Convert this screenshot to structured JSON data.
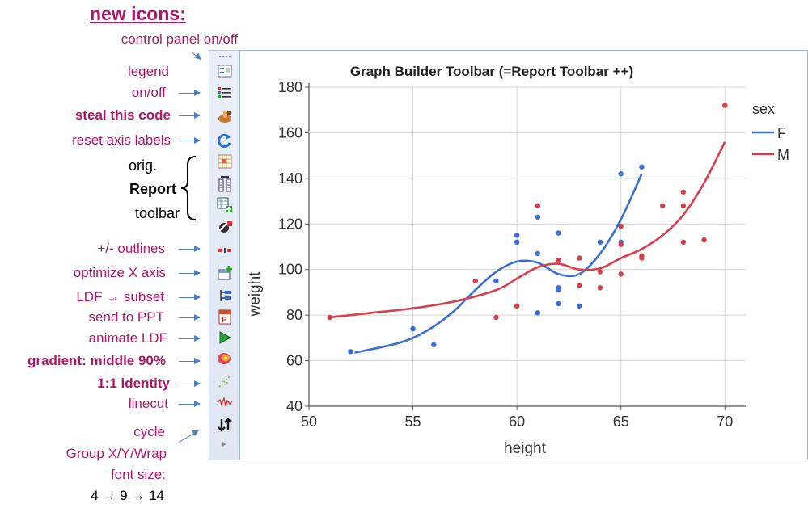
{
  "heading": "new icons:",
  "annotations": {
    "control_panel": "control panel on/off",
    "legend_1": "legend",
    "legend_2": "on/off",
    "steal_code": "steal this code",
    "reset_axis": "reset axis labels",
    "orig": "orig.",
    "report": "Report",
    "toolbar": "toolbar",
    "outlines": "+/-  outlines",
    "optimize_x": "optimize X axis",
    "ldf_subset": "LDF → subset",
    "send_ppt": "send to PPT",
    "animate_ldf": "animate LDF",
    "gradient": "gradient: middle 90%",
    "identity": "1:1 identity",
    "linecut": "linecut",
    "cycle": "cycle",
    "group_xy": "Group X/Y/Wrap",
    "font_size": "font size:",
    "sizes": "4 → 9 → 14"
  },
  "toolbar_icons": [
    "more-icon",
    "control-panel-icon",
    "legend-icon",
    "steal-code-icon",
    "reset-axis-icon",
    "report-grid-icon",
    "columns-icon",
    "add-table-icon",
    "cursor-icon",
    "outlines-icon",
    "optimize-axis-icon",
    "subset-icon",
    "ppt-icon",
    "play-icon",
    "gradient-icon",
    "identity-icon",
    "linecut-icon",
    "cycle-icon",
    "expand-icon"
  ],
  "chart_data": {
    "type": "scatter",
    "title": "Graph Builder Toolbar (=Report Toolbar ++)",
    "xlabel": "height",
    "ylabel": "weight",
    "xlim": [
      50,
      71
    ],
    "ylim": [
      40,
      180
    ],
    "x_ticks": [
      50,
      55,
      60,
      65,
      70
    ],
    "y_ticks": [
      40,
      60,
      80,
      100,
      120,
      140,
      160,
      180
    ],
    "grid": true,
    "legend": {
      "title": "sex",
      "placement": "right"
    },
    "series": [
      {
        "name": "F",
        "color": "#3b6fd4",
        "points": [
          [
            52,
            64
          ],
          [
            55,
            74
          ],
          [
            56,
            67
          ],
          [
            59,
            95
          ],
          [
            60,
            112
          ],
          [
            60,
            115
          ],
          [
            61,
            81
          ],
          [
            61,
            107
          ],
          [
            61,
            123
          ],
          [
            62,
            85
          ],
          [
            62,
            91
          ],
          [
            62,
            92
          ],
          [
            62,
            116
          ],
          [
            63,
            84
          ],
          [
            64,
            112
          ],
          [
            65,
            112
          ],
          [
            65,
            142
          ],
          [
            66,
            145
          ]
        ],
        "smoother": [
          [
            52.2,
            63.5
          ],
          [
            54,
            67
          ],
          [
            55,
            70
          ],
          [
            56,
            75
          ],
          [
            57,
            82
          ],
          [
            58,
            91
          ],
          [
            59,
            99
          ],
          [
            60,
            103.5
          ],
          [
            61,
            103
          ],
          [
            62,
            98
          ],
          [
            63,
            98
          ],
          [
            64,
            107
          ],
          [
            65,
            122
          ],
          [
            66,
            142
          ]
        ]
      },
      {
        "name": "M",
        "color": "#d43f4a",
        "points": [
          [
            51,
            79
          ],
          [
            58,
            95
          ],
          [
            59,
            79
          ],
          [
            60,
            84
          ],
          [
            61,
            128
          ],
          [
            62,
            104
          ],
          [
            62,
            104
          ],
          [
            63,
            93
          ],
          [
            63,
            105
          ],
          [
            64,
            92
          ],
          [
            64,
            99
          ],
          [
            65,
            98
          ],
          [
            65,
            111
          ],
          [
            65,
            119
          ],
          [
            66,
            105
          ],
          [
            66,
            106
          ],
          [
            67,
            128
          ],
          [
            68,
            112
          ],
          [
            68,
            128
          ],
          [
            68,
            134
          ],
          [
            69,
            113
          ],
          [
            70,
            172
          ]
        ],
        "smoother": [
          [
            51,
            79
          ],
          [
            53,
            81
          ],
          [
            55,
            83
          ],
          [
            57,
            86
          ],
          [
            59,
            91
          ],
          [
            60,
            96
          ],
          [
            61,
            101
          ],
          [
            62,
            102.5
          ],
          [
            63,
            100
          ],
          [
            64,
            100.5
          ],
          [
            65,
            105
          ],
          [
            66,
            109
          ],
          [
            67,
            115
          ],
          [
            68,
            124
          ],
          [
            69,
            138
          ],
          [
            70,
            156
          ]
        ]
      }
    ]
  }
}
